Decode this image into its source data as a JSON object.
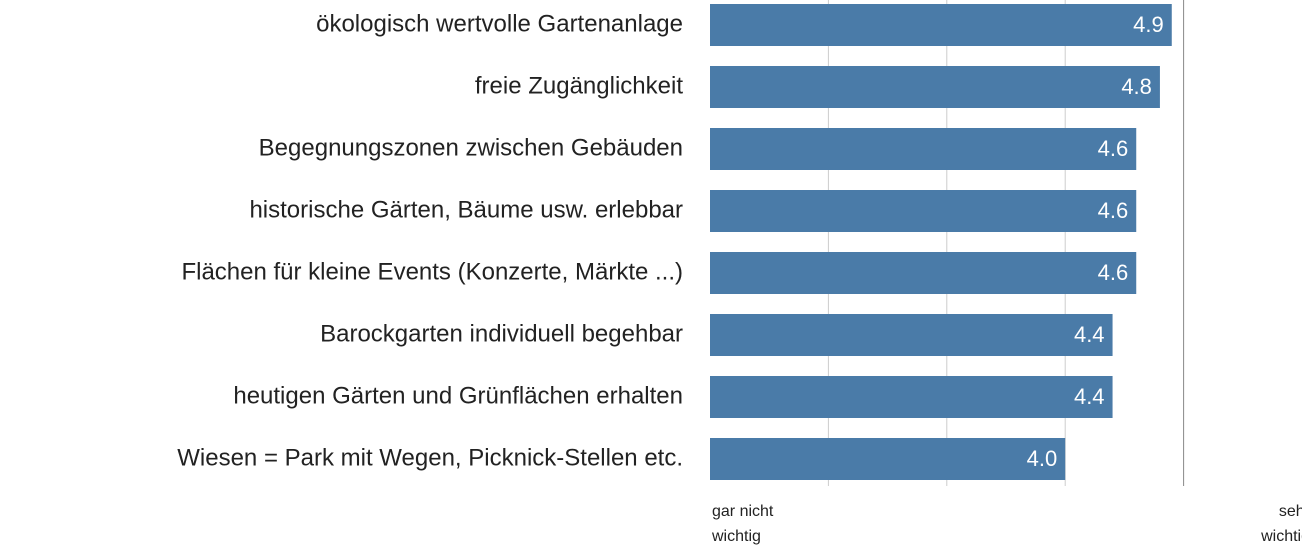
{
  "chart_data": {
    "type": "bar",
    "orientation": "horizontal",
    "categories": [
      "ökologisch wertvolle Gartenanlage",
      "freie Zugänglichkeit",
      "Begegnungszonen zwischen Gebäuden",
      "historische Gärten, Bäume usw. erlebbar",
      "Flächen für kleine Events (Konzerte, Märkte ...)",
      "Barockgarten individuell begehbar",
      "heutigen Gärten und Grünflächen erhalten",
      "Wiesen = Park mit Wegen, Picknick-Stellen etc."
    ],
    "values": [
      4.9,
      4.8,
      4.6,
      4.6,
      4.6,
      4.4,
      4.4,
      4.0
    ],
    "value_labels": [
      "4.9",
      "4.8",
      "4.6",
      "4.6",
      "4.6",
      "4.4",
      "4.4",
      "4.0"
    ],
    "color": "#4a7ba8",
    "xlim": [
      1,
      6
    ],
    "xticks": [
      2,
      3,
      4,
      5
    ],
    "grid": true,
    "x_label_low": "gar nicht wichtig",
    "x_label_high": "sehr wichtig"
  }
}
